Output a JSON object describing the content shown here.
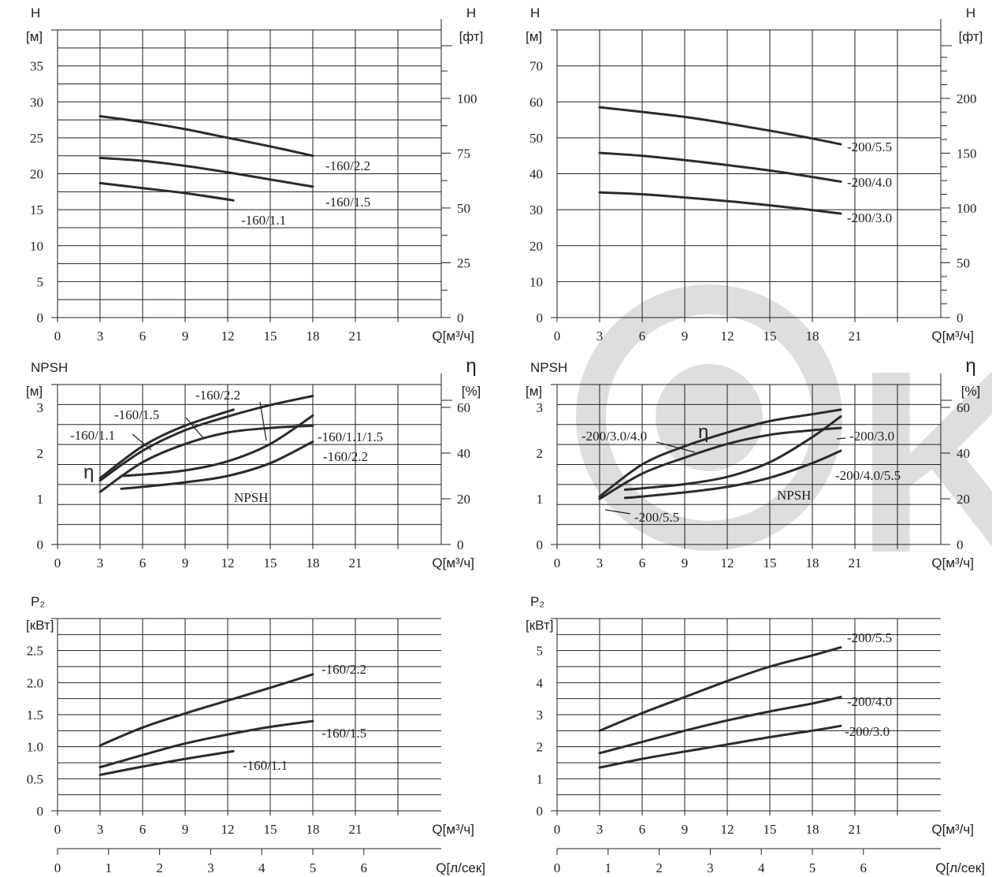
{
  "watermark": {
    "text": "K",
    "color": "#dedede"
  },
  "charts": [
    {
      "id": "head-160",
      "y_label_top": "H",
      "y_label_unit": "[м]",
      "y2_label_top": "H",
      "y2_label_unit": "[фт]",
      "x_label": "Q[м³/ч]",
      "x_ticks": [
        "0",
        "3",
        "6",
        "9",
        "12",
        "15",
        "18",
        "21"
      ],
      "y_ticks": [
        "0",
        "5",
        "10",
        "15",
        "20",
        "25",
        "30",
        "35"
      ],
      "y2_ticks": [
        "0",
        "25",
        "50",
        "75",
        "100"
      ]
    },
    {
      "id": "head-200",
      "y_label_top": "H",
      "y_label_unit": "[м]",
      "y2_label_top": "H",
      "y2_label_unit": "[фт]",
      "x_label": "Q[м³/ч]",
      "x_ticks": [
        "0",
        "3",
        "6",
        "9",
        "12",
        "15",
        "18",
        "21"
      ],
      "y_ticks": [
        "0",
        "10",
        "20",
        "30",
        "40",
        "50",
        "60",
        "70"
      ],
      "y2_ticks": [
        "0",
        "50",
        "100",
        "150",
        "200"
      ]
    },
    {
      "id": "npsh-160",
      "y_label_top": "NPSH",
      "y_label_unit": "[м]",
      "y2_label_top": "η",
      "y2_label_unit": "[%]",
      "x_label": "Q[м³/ч]",
      "x_ticks": [
        "0",
        "3",
        "6",
        "9",
        "12",
        "15",
        "18",
        "21"
      ],
      "y_ticks": [
        "0",
        "1",
        "2",
        "3"
      ],
      "y2_ticks": [
        "0",
        "20",
        "40",
        "60"
      ],
      "eta_label": "η",
      "npsh_label": "NPSH"
    },
    {
      "id": "npsh-200",
      "y_label_top": "NPSH",
      "y_label_unit": "[м]",
      "y2_label_top": "η",
      "y2_label_unit": "[%]",
      "x_label": "Q[м³/ч]",
      "x_ticks": [
        "0",
        "3",
        "6",
        "9",
        "12",
        "15",
        "18",
        "21"
      ],
      "y_ticks": [
        "0",
        "1",
        "2",
        "3"
      ],
      "y2_ticks": [
        "0",
        "20",
        "40",
        "60"
      ],
      "eta_label": "η",
      "npsh_label": "NPSH"
    },
    {
      "id": "power-160",
      "y_label_top": "P₂",
      "y_label_unit": "[кВт]",
      "x_label": "Q[м³/ч]",
      "x_ticks": [
        "0",
        "3",
        "6",
        "9",
        "12",
        "15",
        "18",
        "21"
      ],
      "y_ticks": [
        "0",
        "0.5",
        "1.0",
        "1.5",
        "2.0",
        "2.5"
      ],
      "x2_label": "Q[л/сек]",
      "x2_ticks": [
        "0",
        "1",
        "2",
        "3",
        "4",
        "5",
        "6"
      ]
    },
    {
      "id": "power-200",
      "y_label_top": "P₂",
      "y_label_unit": "[кВт]",
      "x_label": "Q[м³/ч]",
      "x_ticks": [
        "0",
        "3",
        "6",
        "9",
        "12",
        "15",
        "18",
        "21"
      ],
      "y_ticks": [
        "0",
        "1",
        "2",
        "3",
        "4",
        "5"
      ],
      "x2_label": "Q[л/сек]",
      "x2_ticks": [
        "0",
        "1",
        "2",
        "3",
        "4",
        "5",
        "6"
      ]
    }
  ],
  "chart_data": [
    {
      "type": "line",
      "xlabel": "Q[м³/ч]",
      "ylabel": "H [м]",
      "y2label": "H [фт]",
      "xlim": [
        0,
        24
      ],
      "ylim": [
        0,
        40
      ],
      "series": [
        {
          "name": "-160/2.2",
          "x": [
            3,
            6,
            9,
            12,
            15,
            18
          ],
          "y": [
            28.0,
            27.2,
            26.2,
            25.0,
            23.8,
            22.5
          ]
        },
        {
          "name": "-160/1.5",
          "x": [
            3,
            6,
            9,
            12,
            15,
            18
          ],
          "y": [
            22.2,
            21.8,
            21.1,
            20.2,
            19.2,
            18.2
          ]
        },
        {
          "name": "-160/1.1",
          "x": [
            3,
            6,
            9,
            12.4
          ],
          "y": [
            18.7,
            18.0,
            17.3,
            16.3
          ]
        }
      ]
    },
    {
      "type": "line",
      "xlabel": "Q[м³/ч]",
      "ylabel": "H [м]",
      "y2label": "H [фт]",
      "xlim": [
        0,
        27
      ],
      "ylim": [
        0,
        80
      ],
      "series": [
        {
          "name": "-200/5.5",
          "x": [
            3,
            6,
            9,
            12,
            15,
            18,
            20
          ],
          "y": [
            58.5,
            57.2,
            55.8,
            54.0,
            52.0,
            49.8,
            48.2
          ]
        },
        {
          "name": "-200/4.0",
          "x": [
            3,
            6,
            9,
            12,
            15,
            18,
            20
          ],
          "y": [
            45.8,
            45.0,
            43.8,
            42.4,
            40.9,
            39.1,
            37.8
          ]
        },
        {
          "name": "-200/3.0",
          "x": [
            3,
            6,
            9,
            12,
            15,
            18,
            20
          ],
          "y": [
            34.8,
            34.3,
            33.4,
            32.4,
            31.2,
            29.9,
            28.9
          ]
        }
      ]
    },
    {
      "type": "line",
      "xlabel": "Q[м³/ч]",
      "ylabel": "NPSH [м]",
      "y2label": "η [%]",
      "xlim": [
        0,
        24
      ],
      "ylim": [
        0,
        3.5
      ],
      "y2lim": [
        0,
        70
      ],
      "series": [
        {
          "name": "-160/1.1",
          "x": [
            3,
            6,
            9,
            12.4
          ],
          "y": [
            29,
            43,
            52,
            59
          ]
        },
        {
          "name": "-160/1.5",
          "x": [
            3,
            6,
            9,
            12,
            15,
            18
          ],
          "y": [
            28,
            41,
            50,
            56,
            61,
            65
          ]
        },
        {
          "name": "-160/2.2",
          "x": [
            3,
            6,
            9,
            12,
            15,
            18
          ],
          "y": [
            23,
            36,
            44,
            49,
            51,
            52
          ]
        },
        {
          "name": "NPSH -160/1.1/1.5",
          "x": [
            4.5,
            6,
            9,
            12,
            15,
            18
          ],
          "y": [
            1.5,
            1.53,
            1.62,
            1.82,
            2.2,
            2.82
          ]
        },
        {
          "name": "NPSH -160/2.2",
          "x": [
            4.5,
            6,
            9,
            12,
            15,
            18
          ],
          "y": [
            1.22,
            1.26,
            1.36,
            1.5,
            1.78,
            2.25
          ]
        }
      ]
    },
    {
      "type": "line",
      "xlabel": "Q[м³/ч]",
      "ylabel": "NPSH [м]",
      "y2label": "η [%]",
      "xlim": [
        0,
        27
      ],
      "ylim": [
        0,
        3.5
      ],
      "y2lim": [
        0,
        70
      ],
      "series": [
        {
          "name": "-200/3.0/4.0",
          "x": [
            3,
            6,
            9,
            12,
            15,
            18,
            20
          ],
          "y": [
            21,
            35,
            43,
            49,
            54,
            57,
            59
          ]
        },
        {
          "name": "-200/5.5",
          "x": [
            3,
            6,
            9,
            12,
            15,
            18,
            20
          ],
          "y": [
            20,
            31,
            38,
            44,
            48,
            50,
            51
          ]
        },
        {
          "name": "NPSH -200/3.0",
          "x": [
            4.8,
            6,
            9,
            12,
            15,
            18,
            20
          ],
          "y": [
            1.2,
            1.23,
            1.32,
            1.48,
            1.8,
            2.35,
            2.8
          ]
        },
        {
          "name": "NPSH -200/4.0/5.5",
          "x": [
            4.8,
            6,
            9,
            12,
            15,
            18,
            20
          ],
          "y": [
            1.02,
            1.05,
            1.14,
            1.26,
            1.46,
            1.78,
            2.05
          ]
        }
      ]
    },
    {
      "type": "line",
      "xlabel": "Q[м³/ч]",
      "ylabel": "P₂ [кВт]",
      "x2label": "Q[л/сек]",
      "xlim": [
        0,
        24
      ],
      "ylim": [
        0,
        3.0
      ],
      "series": [
        {
          "name": "-160/2.2",
          "x": [
            3,
            6,
            9,
            12,
            15,
            18
          ],
          "y": [
            1.02,
            1.3,
            1.52,
            1.72,
            1.92,
            2.13
          ]
        },
        {
          "name": "-160/1.5",
          "x": [
            3,
            6,
            9,
            12,
            15,
            18
          ],
          "y": [
            0.68,
            0.87,
            1.05,
            1.19,
            1.31,
            1.4
          ]
        },
        {
          "name": "-160/1.1",
          "x": [
            3,
            6,
            9,
            12.4
          ],
          "y": [
            0.56,
            0.69,
            0.81,
            0.93
          ]
        }
      ]
    },
    {
      "type": "line",
      "xlabel": "Q[м³/ч]",
      "ylabel": "P₂ [кВт]",
      "x2label": "Q[л/сек]",
      "xlim": [
        0,
        27
      ],
      "ylim": [
        0,
        6
      ],
      "series": [
        {
          "name": "-200/5.5",
          "x": [
            3,
            6,
            9,
            12,
            15,
            18,
            20
          ],
          "y": [
            2.5,
            3.05,
            3.55,
            4.05,
            4.5,
            4.85,
            5.1
          ]
        },
        {
          "name": "-200/4.0",
          "x": [
            3,
            6,
            9,
            12,
            15,
            18,
            20
          ],
          "y": [
            1.8,
            2.15,
            2.5,
            2.82,
            3.1,
            3.35,
            3.55
          ]
        },
        {
          "name": "-200/3.0",
          "x": [
            3,
            6,
            9,
            12,
            15,
            18,
            20
          ],
          "y": [
            1.35,
            1.62,
            1.85,
            2.07,
            2.3,
            2.5,
            2.65
          ]
        }
      ]
    }
  ]
}
